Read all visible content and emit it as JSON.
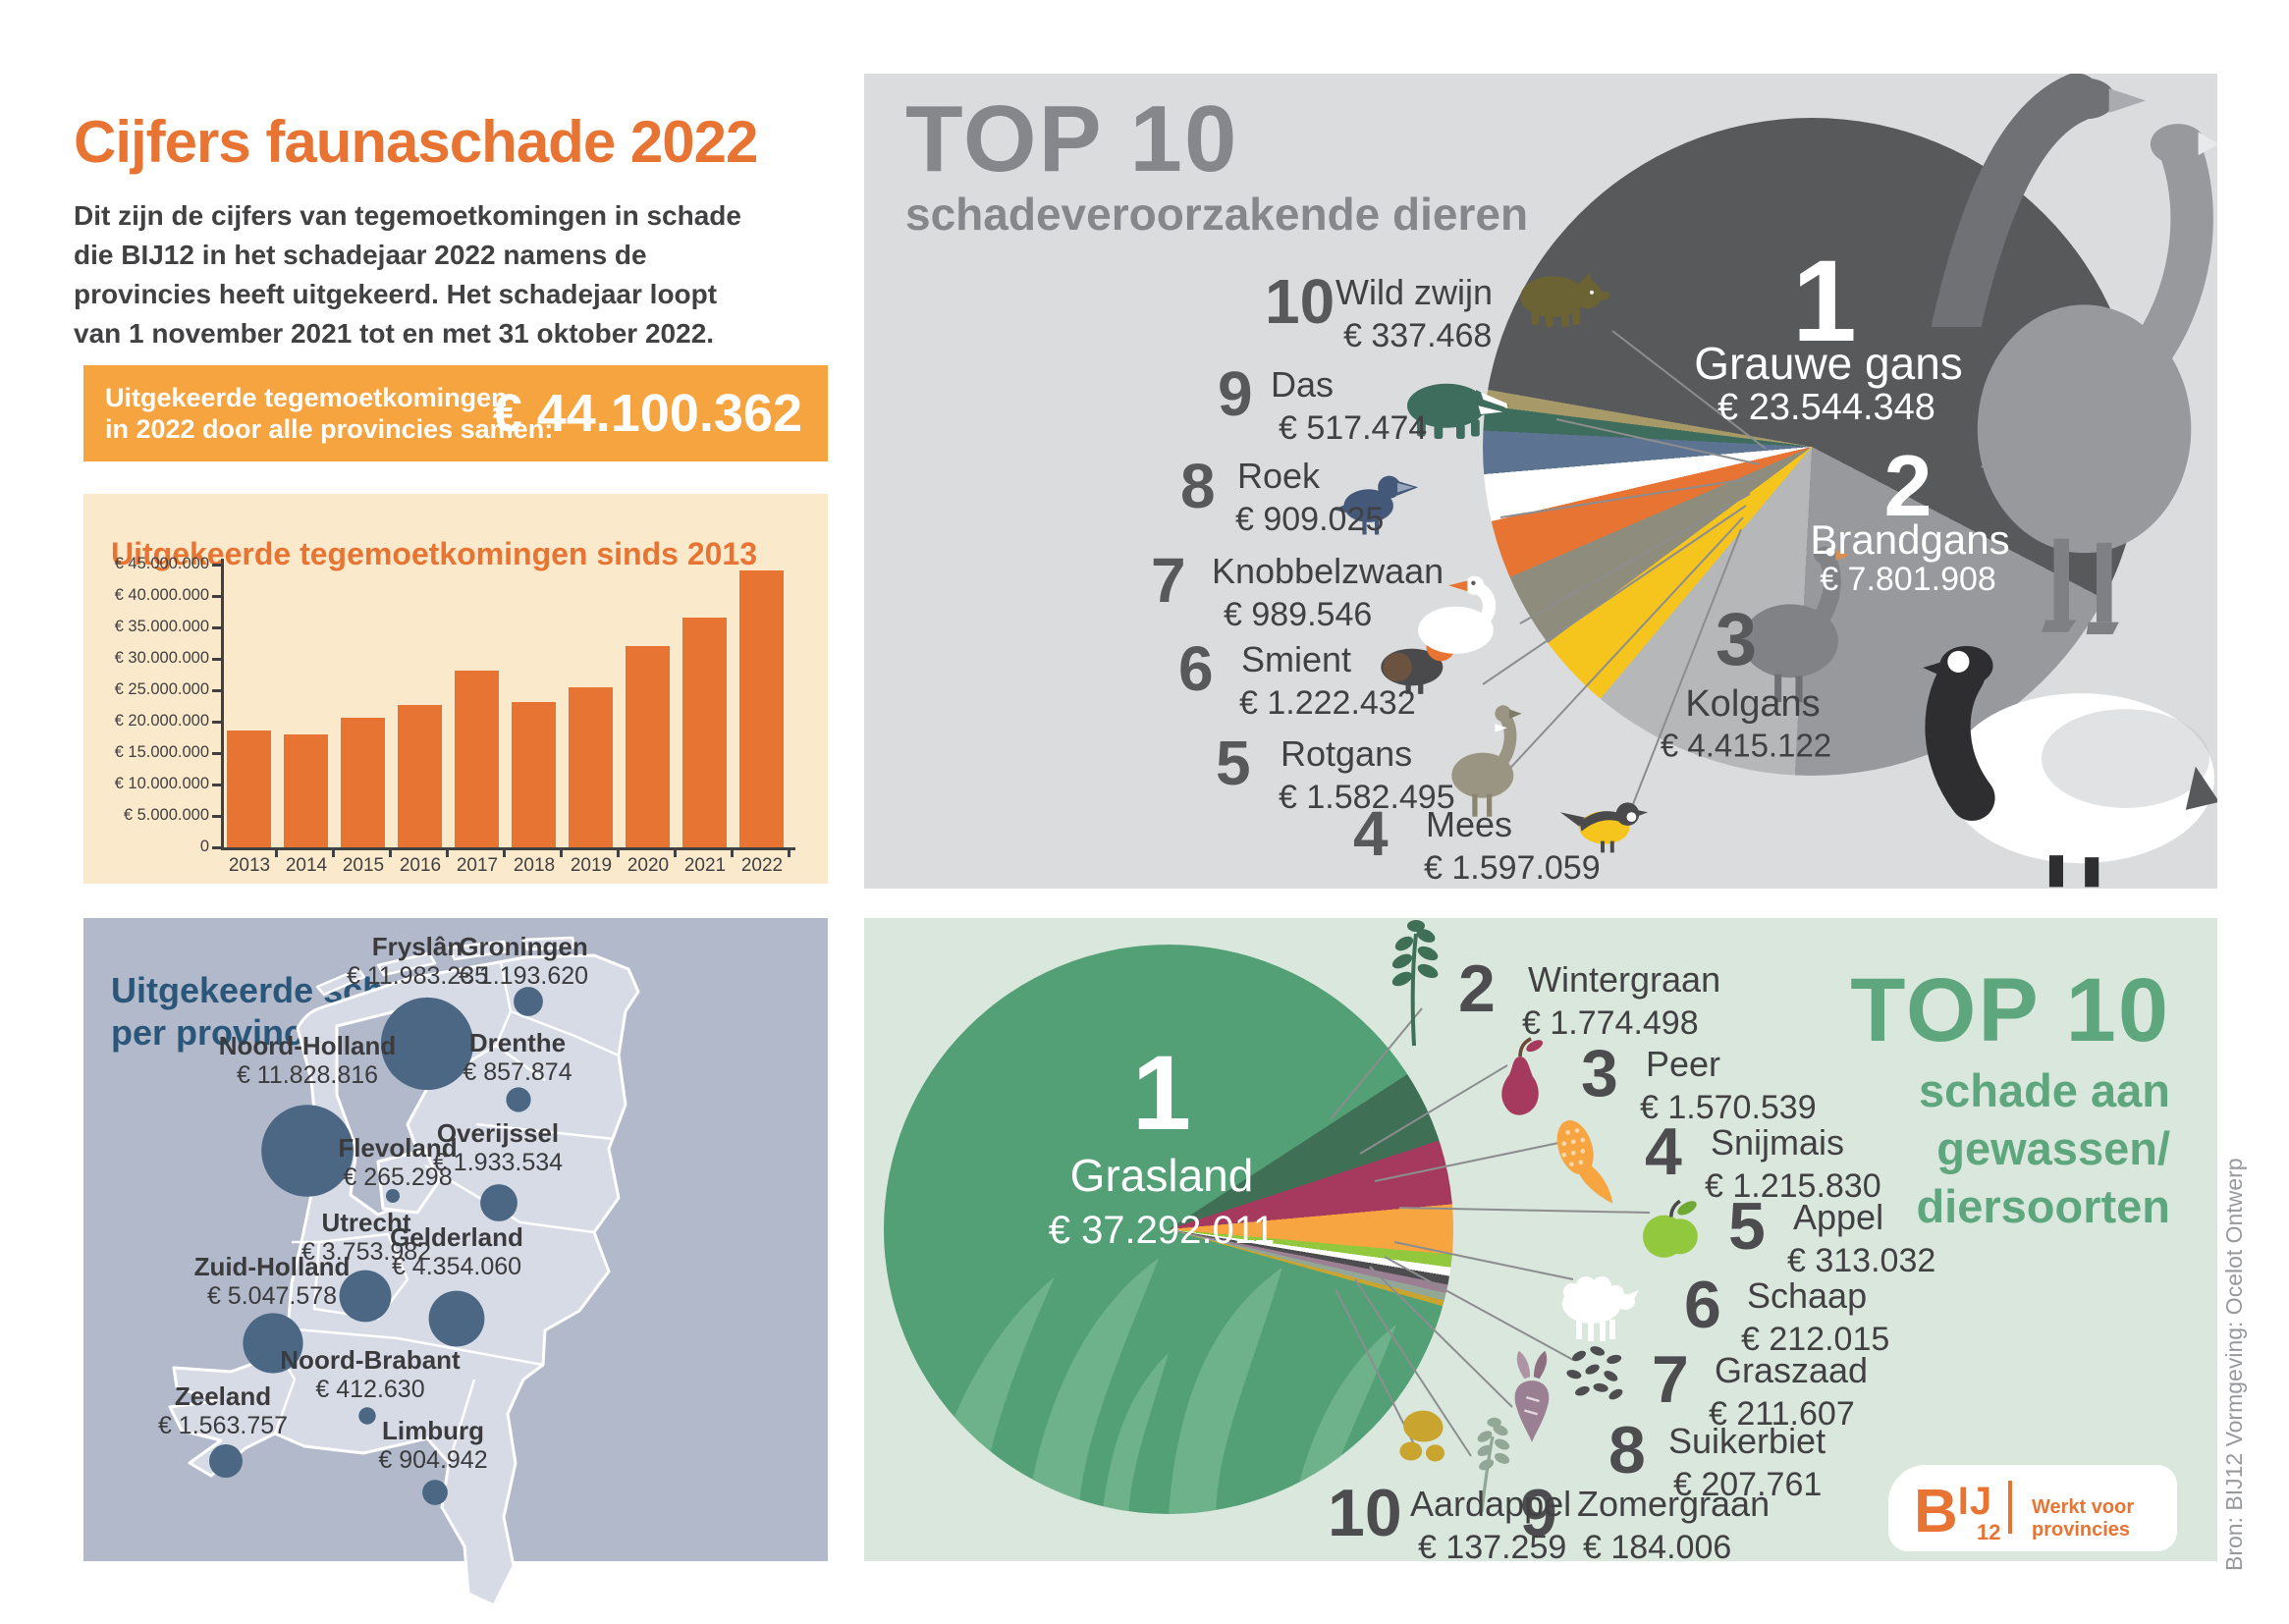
{
  "intro": {
    "title": "Cijfers faunaschade 2022",
    "body": "Dit zijn de cijfers van tegemoetkomingen in schade die BIJ12 in het schadejaar 2022 namens de provincies heeft uitgekeerd. Het schadejaar loopt van 1 november 2021 tot en met 31 oktober 2022."
  },
  "banner": {
    "label_line1": "Uitgekeerde tegemoetkomingen",
    "label_line2": "in 2022 door alle provincies samen:",
    "amount": "€ 44.100.362"
  },
  "chart_data": [
    {
      "id": "payouts_by_year",
      "type": "bar",
      "title": "Uitgekeerde tegemoetkomingen sinds 2013",
      "categories": [
        "2013",
        "2014",
        "2015",
        "2016",
        "2017",
        "2018",
        "2019",
        "2020",
        "2021",
        "2022"
      ],
      "values": [
        18600000,
        17900000,
        20600000,
        22600000,
        28100000,
        23200000,
        25400000,
        32000000,
        36600000,
        44100362
      ],
      "ylim": [
        0,
        45000000
      ],
      "yticks": [
        {
          "v": 45000000,
          "label": "€ 45.000.000"
        },
        {
          "v": 40000000,
          "label": "€ 40.000.000"
        },
        {
          "v": 35000000,
          "label": "€ 35.000.000"
        },
        {
          "v": 30000000,
          "label": "€ 30.000.000"
        },
        {
          "v": 25000000,
          "label": "€ 25.000.000"
        },
        {
          "v": 20000000,
          "label": "€ 20.000.000"
        },
        {
          "v": 15000000,
          "label": "€ 15.000.000"
        },
        {
          "v": 10000000,
          "label": "€ 10.000.000"
        },
        {
          "v": 5000000,
          "label": "€ 5.000.000"
        },
        {
          "v": 0,
          "label": "0"
        }
      ],
      "bar_color": "#E87434"
    },
    {
      "id": "top10_animals",
      "type": "pie",
      "title": "TOP 10",
      "subtitle": "schadeveroorzakende dieren",
      "start_angle_deg": 280,
      "legend_position": "around",
      "items": [
        {
          "rank": 1,
          "label": "Grauwe gans",
          "amount_label": "€ 23.544.348",
          "value": 23544348,
          "color": "#58595B",
          "icon": "goose-tall"
        },
        {
          "rank": 2,
          "label": "Brandgans",
          "amount_label": "€ 7.801.908",
          "value": 7801908,
          "color": "#97999C",
          "icon": "goose-barnacle"
        },
        {
          "rank": 3,
          "label": "Kolgans",
          "amount_label": "€ 4.415.122",
          "value": 4415122,
          "color": "#B5B7B9",
          "icon": "goose-small"
        },
        {
          "rank": 4,
          "label": "Mees",
          "amount_label": "€ 1.597.059",
          "value": 1597059,
          "color": "#F5C51D",
          "icon": "great-tit"
        },
        {
          "rank": 5,
          "label": "Rotgans",
          "amount_label": "€ 1.582.495",
          "value": 1582495,
          "color": "#8E8D7D",
          "icon": "brent-goose"
        },
        {
          "rank": 6,
          "label": "Smient",
          "amount_label": "€ 1.222.432",
          "value": 1222432,
          "color": "#E87434",
          "icon": "wigeon"
        },
        {
          "rank": 7,
          "label": "Knobbelzwaan",
          "amount_label": "€ 989.546",
          "value": 989546,
          "color": "#FFFFFF",
          "icon": "swan"
        },
        {
          "rank": 8,
          "label": "Roek",
          "amount_label": "€ 909.025",
          "value": 909025,
          "color": "#5C7392",
          "icon": "rook"
        },
        {
          "rank": 9,
          "label": "Das",
          "amount_label": "€ 517.474",
          "value": 517474,
          "color": "#3E6C5D",
          "icon": "badger"
        },
        {
          "rank": 10,
          "label": "Wild zwijn",
          "amount_label": "€ 337.468",
          "value": 337468,
          "color": "#A79A68",
          "icon": "boar"
        }
      ]
    },
    {
      "id": "damage_by_province",
      "type": "bubble_map",
      "title_line1": "Uitgekeerde schade",
      "title_line2": "per provincie",
      "bubble_color": "#4C6783",
      "items": [
        {
          "name": "Fryslân",
          "amount_label": "€ 11.983.235",
          "value": 11983235
        },
        {
          "name": "Groningen",
          "amount_label": "€ 1.193.620",
          "value": 1193620
        },
        {
          "name": "Drenthe",
          "amount_label": "€ 857.874",
          "value": 857874
        },
        {
          "name": "Noord-Holland",
          "amount_label": "€ 11.828.816",
          "value": 11828816
        },
        {
          "name": "Flevoland",
          "amount_label": "€ 265.298",
          "value": 265298
        },
        {
          "name": "Overijssel",
          "amount_label": "€ 1.933.534",
          "value": 1933534
        },
        {
          "name": "Utrecht",
          "amount_label": "€ 3.753.982",
          "value": 3753982
        },
        {
          "name": "Gelderland",
          "amount_label": "€ 4.354.060",
          "value": 4354060
        },
        {
          "name": "Zuid-Holland",
          "amount_label": "€ 5.047.578",
          "value": 5047578
        },
        {
          "name": "Noord-Brabant",
          "amount_label": "€ 412.630",
          "value": 412630
        },
        {
          "name": "Zeeland",
          "amount_label": "€ 1.563.757",
          "value": 1563757
        },
        {
          "name": "Limburg",
          "amount_label": "€ 904.942",
          "value": 904942
        }
      ]
    },
    {
      "id": "top10_crops",
      "type": "pie",
      "title": "TOP 10",
      "subtitle_lines": [
        "schade aan",
        "gewassen/",
        "diersoorten"
      ],
      "start_angle_deg": 57,
      "legend_position": "around",
      "items": [
        {
          "rank": 1,
          "label": "Grasland",
          "amount_label": "€ 37.292.011",
          "value": 37292011,
          "color": "#53A077",
          "icon": "grass"
        },
        {
          "rank": 2,
          "label": "Wintergraan",
          "amount_label": "€ 1.774.498",
          "value": 1774498,
          "color": "#3F6F55",
          "icon": "wheat"
        },
        {
          "rank": 3,
          "label": "Peer",
          "amount_label": "€ 1.570.539",
          "value": 1570539,
          "color": "#A53A5E",
          "icon": "pear"
        },
        {
          "rank": 4,
          "label": "Snijmais",
          "amount_label": "€ 1.215.830",
          "value": 1215830,
          "color": "#F6A540",
          "icon": "corn"
        },
        {
          "rank": 5,
          "label": "Appel",
          "amount_label": "€ 313.032",
          "value": 313032,
          "color": "#92C83E",
          "icon": "apple"
        },
        {
          "rank": 6,
          "label": "Schaap",
          "amount_label": "€ 212.015",
          "value": 212015,
          "color": "#FFFFFF",
          "icon": "sheep"
        },
        {
          "rank": 7,
          "label": "Graszaad",
          "amount_label": "€ 211.607",
          "value": 211607,
          "color": "#4D4D4F",
          "icon": "seeds"
        },
        {
          "rank": 8,
          "label": "Suikerbiet",
          "amount_label": "€ 207.761",
          "value": 207761,
          "color": "#9B7F92",
          "icon": "beet"
        },
        {
          "rank": 9,
          "label": "Zomergraan",
          "amount_label": "€ 184.006",
          "value": 184006,
          "color": "#93A797",
          "icon": "grain-sprig"
        },
        {
          "rank": 10,
          "label": "Aardappel",
          "amount_label": "€ 137.259",
          "value": 137259,
          "color": "#C9A42F",
          "icon": "potatoes"
        }
      ]
    }
  ],
  "logo": {
    "brand_parts": [
      "B",
      "IJ",
      "12"
    ],
    "tagline": "Werkt voor provincies"
  },
  "credit": "Bron: BIJ12    Vormgeving: Ocelot Ontwerp"
}
